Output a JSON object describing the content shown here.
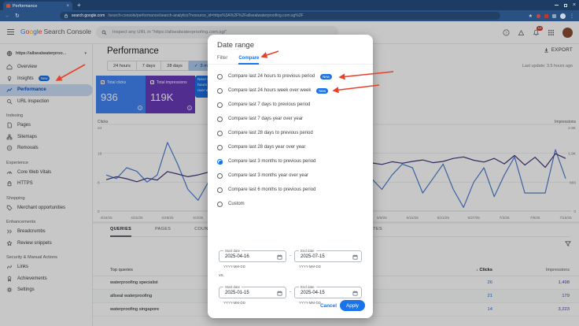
{
  "browser": {
    "tab_title": "Performance",
    "url_domain": "search.google.com",
    "url_path": "/search-console/performance/search-analytics?resource_id=https%3A%2F%2Fallsealwaterproofing.com.sg%2F"
  },
  "icons": {
    "close": "×",
    "plus": "+",
    "back_arrow": "←",
    "reload": "↻",
    "star": "★",
    "menu_dots": "⋮",
    "caret_down": "▾",
    "check": "✓",
    "sort_desc": "↓",
    "dash": "-",
    "question": "?"
  },
  "header": {
    "logo_google": "Google",
    "google_colors": [
      "#4285F4",
      "#EA4335",
      "#FBBC05",
      "#4285F4",
      "#34A853",
      "#EA4335"
    ],
    "logo_suffix": "Search Console",
    "search_placeholder": "Inspect any URL in \"https://allsealwaterproofing.com.sg/\"",
    "notifications_count": "10"
  },
  "sidebar": {
    "property": "https://allsealwaterproo...",
    "items": [
      {
        "type": "item",
        "icon": "home",
        "label": "Overview"
      },
      {
        "type": "item",
        "icon": "insights",
        "label": "Insights",
        "badge": "New"
      },
      {
        "type": "item",
        "icon": "performance",
        "label": "Performance",
        "selected": true
      },
      {
        "type": "item",
        "icon": "inspect",
        "label": "URL inspection"
      },
      {
        "type": "section",
        "label": "Indexing"
      },
      {
        "type": "item",
        "icon": "pages",
        "label": "Pages"
      },
      {
        "type": "item",
        "icon": "sitemaps",
        "label": "Sitemaps"
      },
      {
        "type": "item",
        "icon": "removals",
        "label": "Removals"
      },
      {
        "type": "section",
        "label": "Experience"
      },
      {
        "type": "item",
        "icon": "cwv",
        "label": "Core Web Vitals"
      },
      {
        "type": "item",
        "icon": "https",
        "label": "HTTPS"
      },
      {
        "type": "section",
        "label": "Shopping"
      },
      {
        "type": "item",
        "icon": "merchant",
        "label": "Merchant opportunities"
      },
      {
        "type": "section",
        "label": "Enhancements"
      },
      {
        "type": "item",
        "icon": "breadcrumbs",
        "label": "Breadcrumbs"
      },
      {
        "type": "item",
        "icon": "review",
        "label": "Review snippets"
      },
      {
        "type": "section",
        "label": "Security & Manual Actions"
      },
      {
        "type": "item",
        "icon": "links",
        "label": "Links"
      },
      {
        "type": "item",
        "icon": "achievements",
        "label": "Achievements"
      },
      {
        "type": "item",
        "icon": "settings",
        "label": "Settings"
      }
    ]
  },
  "main": {
    "title": "Performance",
    "export_label": "EXPORT",
    "last_update": "Last update: 3.5 hours ago",
    "chips": [
      {
        "label": "24 hours"
      },
      {
        "label": "7 days"
      },
      {
        "label": "28 days"
      },
      {
        "label": "3 months",
        "selected": true
      },
      {
        "label": "More",
        "caret": true
      }
    ],
    "cards": [
      {
        "label": "Total clicks",
        "value": "936",
        "color": "#4285f4"
      },
      {
        "label": "Total impressions",
        "value": "119K",
        "color": "#673ab7"
      }
    ],
    "tooltip_lines": [
      "New! Co",
      "hours to",
      "over we"
    ],
    "table": {
      "tabs": [
        "QUERIES",
        "PAGES",
        "COUNTRIES",
        "DEVICES",
        "SEARCH APPEARANCE",
        "DATES"
      ],
      "active_tab": "QUERIES",
      "col_queries": "Top queries",
      "col_clicks": "Clicks",
      "col_impressions": "Impressions",
      "rows": [
        {
          "query": "waterproofing specialist",
          "clicks": "26",
          "impressions": "1,498"
        },
        {
          "query": "allseal waterproofing",
          "clicks": "21",
          "impressions": "179"
        },
        {
          "query": "waterproofing singapore",
          "clicks": "14",
          "impressions": "3,223"
        }
      ]
    }
  },
  "chart_data": {
    "type": "line",
    "x": [
      "4/16/25",
      "4/22/25",
      "4/28/25",
      "5/4/25",
      "5/10/25",
      "5/16/25",
      "5/22/25",
      "5/28/25",
      "6/3/25",
      "6/9/25",
      "6/15/25",
      "6/21/25",
      "6/27/25",
      "7/3/25",
      "7/9/25",
      "7/15/25"
    ],
    "y_left": {
      "label": "Clicks",
      "ticks": [
        "24",
        "16",
        "8",
        "0"
      ],
      "max": 24
    },
    "y_right": {
      "label": "Impressions",
      "ticks": [
        "2.9K",
        "1.9K",
        "966",
        "0"
      ],
      "max": 2900
    },
    "grid": true,
    "series": [
      {
        "name": "Clicks",
        "axis": "left",
        "color": "#4c7fd0",
        "values": [
          10,
          9,
          12,
          11,
          8,
          10,
          19,
          13,
          6,
          3,
          8,
          12,
          13,
          10,
          2,
          8,
          11,
          9,
          12,
          10,
          7,
          9,
          11,
          8,
          10,
          12,
          9,
          6,
          10,
          13,
          12,
          5,
          9,
          13,
          6,
          1,
          8,
          12,
          4,
          10,
          15,
          5,
          5,
          5,
          17,
          9
        ]
      },
      {
        "name": "Impressions",
        "axis": "right",
        "color": "#45337a",
        "values": [
          1050,
          1150,
          1080,
          980,
          1100,
          1040,
          1320,
          1240,
          1150,
          1210,
          1300,
          1260,
          1350,
          1310,
          1260,
          1340,
          1400,
          1360,
          1300,
          1410,
          1460,
          1500,
          1450,
          1560,
          1510,
          1560,
          1610,
          1560,
          1650,
          1600,
          1660,
          1710,
          1620,
          1660,
          1760,
          1810,
          1700,
          1640,
          1760,
          1580,
          1860,
          1540,
          1800,
          1460,
          1920,
          1760
        ]
      }
    ]
  },
  "dialog": {
    "title": "Date range",
    "tabs": [
      "Filter",
      "Compare"
    ],
    "active_tab": "Compare",
    "options": [
      {
        "label": "Compare last 24 hours to previous period",
        "badge": "New"
      },
      {
        "label": "Compare last 24 hours week over week",
        "badge": "New"
      },
      {
        "label": "Compare last 7 days to previous period"
      },
      {
        "label": "Compare last 7 days year over year"
      },
      {
        "label": "Compare last 28 days to previous period"
      },
      {
        "label": "Compare last 28 days year over year"
      },
      {
        "label": "Compare last 3 months to previous period",
        "selected": true
      },
      {
        "label": "Compare last 3 months year over year"
      },
      {
        "label": "Compare last 6 months to previous period"
      },
      {
        "label": "Custom"
      }
    ],
    "start_label": "Start date",
    "end_label": "End date",
    "date_format": "YYYY-MM-DD",
    "vs_label": "vs.",
    "range1": {
      "start": "2025-04-16",
      "end": "2025-07-15"
    },
    "range2": {
      "start": "2025-01-15",
      "end": "2025-04-15"
    },
    "cancel": "Cancel",
    "apply": "Apply"
  }
}
